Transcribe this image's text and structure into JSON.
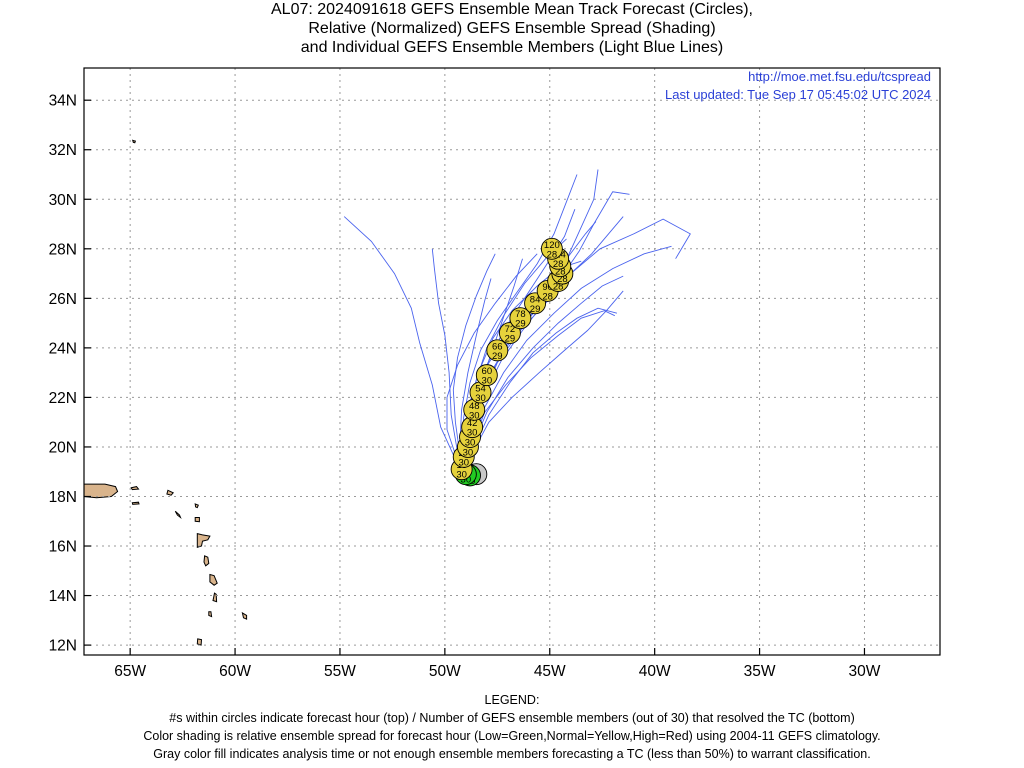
{
  "title": {
    "line1": "AL07: 2024091618 GEFS Ensemble Mean Track Forecast (Circles),",
    "line2": "Relative (Normalized) GEFS Ensemble Spread (Shading)",
    "line3": "and Individual GEFS Ensemble Members (Light Blue Lines)"
  },
  "header_right": {
    "url": "http://moe.met.fsu.edu/tcspread",
    "updated": "Last updated: Tue Sep 17 05:45:02 UTC 2024"
  },
  "axes": {
    "lon_range": [
      -67.2,
      -26.4
    ],
    "lat_range": [
      11.6,
      35.3
    ],
    "lon_ticks": [
      {
        "value": -65,
        "label": "65W"
      },
      {
        "value": -60,
        "label": "60W"
      },
      {
        "value": -55,
        "label": "55W"
      },
      {
        "value": -50,
        "label": "50W"
      },
      {
        "value": -45,
        "label": "45W"
      },
      {
        "value": -40,
        "label": "40W"
      },
      {
        "value": -35,
        "label": "35W"
      },
      {
        "value": -30,
        "label": "30W"
      }
    ],
    "lat_ticks": [
      {
        "value": 12,
        "label": "12N"
      },
      {
        "value": 14,
        "label": "14N"
      },
      {
        "value": 16,
        "label": "16N"
      },
      {
        "value": 18,
        "label": "18N"
      },
      {
        "value": 20,
        "label": "20N"
      },
      {
        "value": 22,
        "label": "22N"
      },
      {
        "value": 24,
        "label": "24N"
      },
      {
        "value": 26,
        "label": "26N"
      },
      {
        "value": 28,
        "label": "28N"
      },
      {
        "value": 30,
        "label": "30N"
      },
      {
        "value": 32,
        "label": "32N"
      },
      {
        "value": 34,
        "label": "34N"
      }
    ],
    "grid": "dotted"
  },
  "colors": {
    "gray": "#c8c8c8",
    "green": "#22cc22",
    "yellow": "#e6d23c",
    "member_lines": "#4a63ee",
    "land": "#d9b48c",
    "url_text": "#2a3fd6"
  },
  "mean_track": [
    {
      "hour": "0",
      "members": "",
      "lon": -48.5,
      "lat": 18.9,
      "spread": "gray"
    },
    {
      "hour": "6",
      "members": "30",
      "lon": -48.8,
      "lat": 18.85,
      "spread": "green"
    },
    {
      "hour": "12",
      "members": "30",
      "lon": -49.0,
      "lat": 18.9,
      "spread": "green"
    },
    {
      "hour": "18",
      "members": "30",
      "lon": -49.2,
      "lat": 19.1,
      "spread": "yellow"
    },
    {
      "hour": "24",
      "members": "30",
      "lon": -49.1,
      "lat": 19.6,
      "spread": "yellow"
    },
    {
      "hour": "30",
      "members": "30",
      "lon": -48.9,
      "lat": 20.0,
      "spread": "yellow"
    },
    {
      "hour": "36",
      "members": "30",
      "lon": -48.8,
      "lat": 20.4,
      "spread": "yellow"
    },
    {
      "hour": "42",
      "members": "30",
      "lon": -48.7,
      "lat": 20.8,
      "spread": "yellow"
    },
    {
      "hour": "48",
      "members": "30",
      "lon": -48.6,
      "lat": 21.5,
      "spread": "yellow"
    },
    {
      "hour": "54",
      "members": "30",
      "lon": -48.3,
      "lat": 22.2,
      "spread": "yellow"
    },
    {
      "hour": "60",
      "members": "30",
      "lon": -48.0,
      "lat": 22.9,
      "spread": "yellow"
    },
    {
      "hour": "66",
      "members": "29",
      "lon": -47.5,
      "lat": 23.9,
      "spread": "yellow"
    },
    {
      "hour": "72",
      "members": "29",
      "lon": -46.9,
      "lat": 24.6,
      "spread": "yellow"
    },
    {
      "hour": "78",
      "members": "29",
      "lon": -46.4,
      "lat": 25.2,
      "spread": "yellow"
    },
    {
      "hour": "84",
      "members": "29",
      "lon": -45.7,
      "lat": 25.8,
      "spread": "yellow"
    },
    {
      "hour": "90",
      "members": "28",
      "lon": -45.1,
      "lat": 26.3,
      "spread": "yellow"
    },
    {
      "hour": "96",
      "members": "28",
      "lon": -44.6,
      "lat": 26.7,
      "spread": "yellow"
    },
    {
      "hour": "102",
      "members": "28",
      "lon": -44.4,
      "lat": 27.0,
      "spread": "yellow"
    },
    {
      "hour": "108",
      "members": "28",
      "lon": -44.5,
      "lat": 27.3,
      "spread": "yellow"
    },
    {
      "hour": "114",
      "members": "28",
      "lon": -44.6,
      "lat": 27.6,
      "spread": "yellow"
    },
    {
      "hour": "120",
      "members": "28",
      "lon": -44.9,
      "lat": 28.0,
      "spread": "yellow"
    }
  ],
  "members": [
    [
      [
        -48.8,
        18.9
      ],
      [
        -49.5,
        19.5
      ],
      [
        -50.2,
        20.8
      ],
      [
        -50.6,
        22.5
      ],
      [
        -51.2,
        24.2
      ],
      [
        -51.6,
        25.6
      ],
      [
        -52.4,
        27.0
      ],
      [
        -53.5,
        28.3
      ],
      [
        -54.8,
        29.3
      ]
    ],
    [
      [
        -48.8,
        18.9
      ],
      [
        -49.4,
        19.8
      ],
      [
        -49.7,
        21.3
      ],
      [
        -49.8,
        23.0
      ],
      [
        -50.0,
        24.5
      ],
      [
        -50.3,
        25.8
      ],
      [
        -50.5,
        27.2
      ],
      [
        -50.6,
        28.0
      ]
    ],
    [
      [
        -48.8,
        18.9
      ],
      [
        -49.3,
        19.8
      ],
      [
        -49.2,
        21.5
      ],
      [
        -48.9,
        23.0
      ],
      [
        -48.5,
        24.5
      ],
      [
        -48.1,
        25.9
      ],
      [
        -47.8,
        26.8
      ]
    ],
    [
      [
        -48.8,
        18.9
      ],
      [
        -49.0,
        20.0
      ],
      [
        -48.6,
        21.6
      ],
      [
        -48.0,
        23.3
      ],
      [
        -47.2,
        24.7
      ],
      [
        -46.2,
        26.0
      ],
      [
        -45.2,
        27.3
      ],
      [
        -44.3,
        28.5
      ],
      [
        -43.8,
        29.6
      ]
    ],
    [
      [
        -48.8,
        18.9
      ],
      [
        -48.9,
        20.1
      ],
      [
        -48.4,
        21.7
      ],
      [
        -47.6,
        23.3
      ],
      [
        -46.8,
        24.5
      ],
      [
        -45.6,
        25.6
      ],
      [
        -44.5,
        26.8
      ],
      [
        -43.6,
        27.9
      ],
      [
        -42.9,
        29.0
      ],
      [
        -42.0,
        30.3
      ],
      [
        -41.2,
        30.2
      ]
    ],
    [
      [
        -48.8,
        18.9
      ],
      [
        -48.8,
        20.3
      ],
      [
        -48.2,
        22.0
      ],
      [
        -47.3,
        23.5
      ],
      [
        -46.3,
        24.7
      ],
      [
        -45.2,
        25.9
      ],
      [
        -44.4,
        27.2
      ],
      [
        -43.7,
        28.5
      ],
      [
        -42.9,
        30.0
      ],
      [
        -42.7,
        31.2
      ]
    ],
    [
      [
        -48.8,
        18.9
      ],
      [
        -48.8,
        20.2
      ],
      [
        -48.3,
        21.8
      ],
      [
        -47.5,
        23.4
      ],
      [
        -46.4,
        24.7
      ],
      [
        -45.2,
        25.8
      ],
      [
        -44.0,
        27.0
      ],
      [
        -42.6,
        28.0
      ],
      [
        -41.0,
        28.6
      ],
      [
        -39.6,
        29.2
      ],
      [
        -38.3,
        28.6
      ],
      [
        -39.0,
        27.6
      ]
    ],
    [
      [
        -48.8,
        18.9
      ],
      [
        -48.7,
        20.1
      ],
      [
        -48.1,
        21.6
      ],
      [
        -47.2,
        23.0
      ],
      [
        -46.1,
        24.3
      ],
      [
        -44.8,
        25.4
      ],
      [
        -43.5,
        26.4
      ],
      [
        -42.0,
        27.2
      ],
      [
        -40.5,
        27.8
      ],
      [
        -39.2,
        28.1
      ]
    ],
    [
      [
        -48.8,
        18.9
      ],
      [
        -48.7,
        20.0
      ],
      [
        -48.0,
        21.4
      ],
      [
        -47.0,
        22.8
      ],
      [
        -45.8,
        24.0
      ],
      [
        -44.6,
        25.0
      ],
      [
        -43.5,
        25.8
      ],
      [
        -42.5,
        26.5
      ],
      [
        -41.5,
        26.9
      ]
    ],
    [
      [
        -48.8,
        18.9
      ],
      [
        -48.6,
        20.0
      ],
      [
        -47.9,
        21.3
      ],
      [
        -46.9,
        22.6
      ],
      [
        -45.8,
        23.8
      ],
      [
        -44.7,
        24.6
      ],
      [
        -43.7,
        25.2
      ],
      [
        -42.7,
        25.6
      ],
      [
        -41.8,
        25.4
      ]
    ],
    [
      [
        -48.8,
        18.9
      ],
      [
        -49.0,
        19.9
      ],
      [
        -48.9,
        21.3
      ],
      [
        -48.5,
        22.7
      ],
      [
        -48.0,
        24.0
      ],
      [
        -47.2,
        25.3
      ],
      [
        -46.2,
        26.6
      ],
      [
        -45.2,
        27.6
      ],
      [
        -44.2,
        28.4
      ]
    ],
    [
      [
        -48.8,
        18.9
      ],
      [
        -49.3,
        19.8
      ],
      [
        -49.5,
        21.0
      ],
      [
        -49.6,
        22.3
      ],
      [
        -49.4,
        23.6
      ],
      [
        -49.0,
        24.9
      ],
      [
        -48.5,
        26.1
      ],
      [
        -48.0,
        27.1
      ],
      [
        -47.6,
        27.8
      ]
    ],
    [
      [
        -48.8,
        18.9
      ],
      [
        -49.2,
        19.9
      ],
      [
        -49.1,
        21.2
      ],
      [
        -48.8,
        22.6
      ],
      [
        -48.3,
        23.9
      ],
      [
        -47.5,
        25.1
      ],
      [
        -46.6,
        26.2
      ],
      [
        -45.6,
        27.4
      ],
      [
        -44.8,
        28.6
      ],
      [
        -44.2,
        29.9
      ],
      [
        -43.7,
        31.0
      ]
    ],
    [
      [
        -48.8,
        18.9
      ],
      [
        -49.0,
        20.1
      ],
      [
        -48.6,
        21.5
      ],
      [
        -47.9,
        22.9
      ],
      [
        -47.0,
        24.1
      ],
      [
        -46.0,
        25.2
      ],
      [
        -45.0,
        26.1
      ],
      [
        -44.0,
        27.0
      ],
      [
        -43.0,
        27.8
      ],
      [
        -42.2,
        28.6
      ],
      [
        -41.5,
        29.3
      ]
    ],
    [
      [
        -48.8,
        18.9
      ],
      [
        -48.9,
        20.2
      ],
      [
        -48.5,
        21.9
      ],
      [
        -47.9,
        23.5
      ],
      [
        -47.3,
        25.0
      ],
      [
        -46.7,
        26.5
      ],
      [
        -46.3,
        27.6
      ]
    ],
    [
      [
        -48.8,
        18.9
      ],
      [
        -48.7,
        20.1
      ],
      [
        -48.1,
        21.4
      ],
      [
        -47.1,
        22.5
      ],
      [
        -45.9,
        23.6
      ],
      [
        -44.6,
        24.5
      ],
      [
        -43.5,
        25.2
      ],
      [
        -42.4,
        25.5
      ],
      [
        -41.9,
        25.3
      ]
    ],
    [
      [
        -48.8,
        18.9
      ],
      [
        -48.6,
        19.9
      ],
      [
        -47.9,
        21.0
      ],
      [
        -46.8,
        22.0
      ],
      [
        -45.5,
        23.0
      ],
      [
        -44.3,
        23.9
      ],
      [
        -43.2,
        24.7
      ],
      [
        -42.3,
        25.5
      ],
      [
        -41.5,
        26.3
      ]
    ],
    [
      [
        -48.8,
        18.9
      ],
      [
        -49.1,
        20.0
      ],
      [
        -48.9,
        21.5
      ],
      [
        -48.4,
        23.0
      ],
      [
        -47.7,
        24.4
      ],
      [
        -46.8,
        25.5
      ],
      [
        -45.6,
        26.5
      ],
      [
        -44.6,
        27.2
      ],
      [
        -43.5,
        27.5
      ]
    ],
    [
      [
        -48.8,
        18.9
      ],
      [
        -49.5,
        19.7
      ],
      [
        -49.9,
        20.7
      ],
      [
        -49.9,
        22.0
      ],
      [
        -49.4,
        23.3
      ],
      [
        -48.6,
        24.6
      ],
      [
        -47.6,
        25.8
      ],
      [
        -46.6,
        26.9
      ],
      [
        -45.6,
        27.8
      ]
    ],
    [
      [
        -48.8,
        18.9
      ],
      [
        -49.1,
        19.8
      ],
      [
        -49.0,
        21.0
      ],
      [
        -48.6,
        22.2
      ],
      [
        -47.9,
        23.4
      ],
      [
        -47.0,
        24.6
      ],
      [
        -46.0,
        25.7
      ],
      [
        -45.0,
        26.8
      ],
      [
        -44.1,
        27.7
      ],
      [
        -43.3,
        28.6
      ],
      [
        -42.8,
        29.1
      ]
    ]
  ],
  "land": [
    {
      "name": "Puerto Rico",
      "pts": [
        [
          -67.2,
          18.5
        ],
        [
          -66.2,
          18.5
        ],
        [
          -65.7,
          18.4
        ],
        [
          -65.6,
          18.2
        ],
        [
          -65.9,
          18.0
        ],
        [
          -66.6,
          17.95
        ],
        [
          -67.2,
          18.0
        ]
      ]
    },
    {
      "name": "Virgin Islands",
      "pts": [
        [
          -64.95,
          18.35
        ],
        [
          -64.7,
          18.4
        ],
        [
          -64.6,
          18.3
        ],
        [
          -64.9,
          18.28
        ]
      ]
    },
    {
      "name": "St Croix",
      "pts": [
        [
          -64.9,
          17.75
        ],
        [
          -64.6,
          17.77
        ],
        [
          -64.58,
          17.7
        ],
        [
          -64.88,
          17.68
        ]
      ]
    },
    {
      "name": "Anguilla/St Martin",
      "pts": [
        [
          -63.2,
          18.25
        ],
        [
          -62.95,
          18.15
        ],
        [
          -63.05,
          18.05
        ],
        [
          -63.25,
          18.1
        ]
      ]
    },
    {
      "name": "St Kitts",
      "pts": [
        [
          -62.85,
          17.4
        ],
        [
          -62.65,
          17.25
        ],
        [
          -62.6,
          17.15
        ],
        [
          -62.75,
          17.25
        ]
      ]
    },
    {
      "name": "Antigua",
      "pts": [
        [
          -61.9,
          17.15
        ],
        [
          -61.7,
          17.15
        ],
        [
          -61.7,
          16.98
        ],
        [
          -61.9,
          17.0
        ]
      ]
    },
    {
      "name": "Barbuda",
      "pts": [
        [
          -61.9,
          17.7
        ],
        [
          -61.75,
          17.65
        ],
        [
          -61.8,
          17.55
        ],
        [
          -61.88,
          17.58
        ]
      ]
    },
    {
      "name": "Guadeloupe",
      "pts": [
        [
          -61.8,
          16.5
        ],
        [
          -61.55,
          16.45
        ],
        [
          -61.2,
          16.4
        ],
        [
          -61.3,
          16.25
        ],
        [
          -61.55,
          16.2
        ],
        [
          -61.6,
          16.0
        ],
        [
          -61.8,
          15.95
        ],
        [
          -61.8,
          16.3
        ]
      ]
    },
    {
      "name": "Dominica",
      "pts": [
        [
          -61.45,
          15.6
        ],
        [
          -61.3,
          15.55
        ],
        [
          -61.25,
          15.3
        ],
        [
          -61.4,
          15.2
        ],
        [
          -61.48,
          15.35
        ]
      ]
    },
    {
      "name": "Martinique",
      "pts": [
        [
          -61.2,
          14.85
        ],
        [
          -61.0,
          14.8
        ],
        [
          -60.85,
          14.5
        ],
        [
          -61.0,
          14.42
        ],
        [
          -61.2,
          14.55
        ]
      ]
    },
    {
      "name": "St Lucia",
      "pts": [
        [
          -60.98,
          14.1
        ],
        [
          -60.9,
          14.05
        ],
        [
          -60.88,
          13.75
        ],
        [
          -61.05,
          13.8
        ]
      ]
    },
    {
      "name": "St Vincent",
      "pts": [
        [
          -61.25,
          13.35
        ],
        [
          -61.15,
          13.35
        ],
        [
          -61.12,
          13.15
        ],
        [
          -61.25,
          13.2
        ]
      ]
    },
    {
      "name": "Barbados",
      "pts": [
        [
          -59.65,
          13.3
        ],
        [
          -59.45,
          13.2
        ],
        [
          -59.45,
          13.05
        ],
        [
          -59.6,
          13.1
        ]
      ]
    },
    {
      "name": "Grenada",
      "pts": [
        [
          -61.78,
          12.25
        ],
        [
          -61.6,
          12.22
        ],
        [
          -61.62,
          12.0
        ],
        [
          -61.8,
          12.05
        ]
      ]
    },
    {
      "name": "Bermuda",
      "pts": [
        [
          -64.88,
          32.38
        ],
        [
          -64.75,
          32.35
        ],
        [
          -64.78,
          32.28
        ],
        [
          -64.85,
          32.3
        ]
      ]
    }
  ]
}
